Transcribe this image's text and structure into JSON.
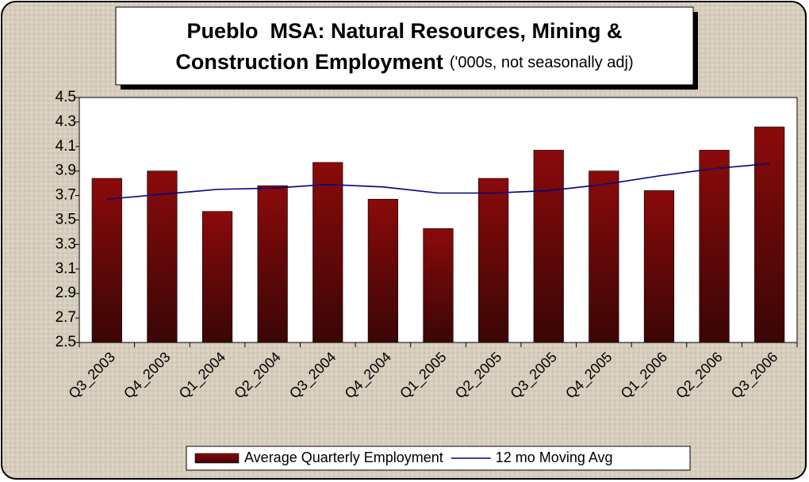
{
  "chart_data": {
    "type": "bar",
    "title": [
      "Pueblo  MSA: Natural Resources, Mining &",
      "Construction Employment"
    ],
    "subtitle": "('000s, not seasonally adj)",
    "categories": [
      "Q3_2003",
      "Q4_2003",
      "Q1_2004",
      "Q2_2004",
      "Q3_2004",
      "Q4_2004",
      "Q1_2005",
      "Q2_2005",
      "Q3_2005",
      "Q4_2005",
      "Q1_2006",
      "Q2_2006",
      "Q3_2006"
    ],
    "series": [
      {
        "name": "Average Quarterly Employment",
        "type": "bar",
        "color": "#8b0a0a",
        "values": [
          3.84,
          3.9,
          3.57,
          3.78,
          3.97,
          3.67,
          3.43,
          3.84,
          4.07,
          3.9,
          3.74,
          4.07,
          4.26
        ]
      },
      {
        "name": "12 mo Moving Avg",
        "type": "line",
        "color": "#000080",
        "values": [
          3.67,
          3.71,
          3.75,
          3.76,
          3.79,
          3.77,
          3.72,
          3.72,
          3.74,
          3.79,
          3.86,
          3.92,
          3.96
        ]
      }
    ],
    "ylim": [
      2.5,
      4.5
    ],
    "yticks": [
      2.5,
      2.7,
      2.9,
      3.1,
      3.3,
      3.5,
      3.7,
      3.9,
      4.1,
      4.3,
      4.5
    ],
    "grid": false,
    "legend": "bottom"
  }
}
